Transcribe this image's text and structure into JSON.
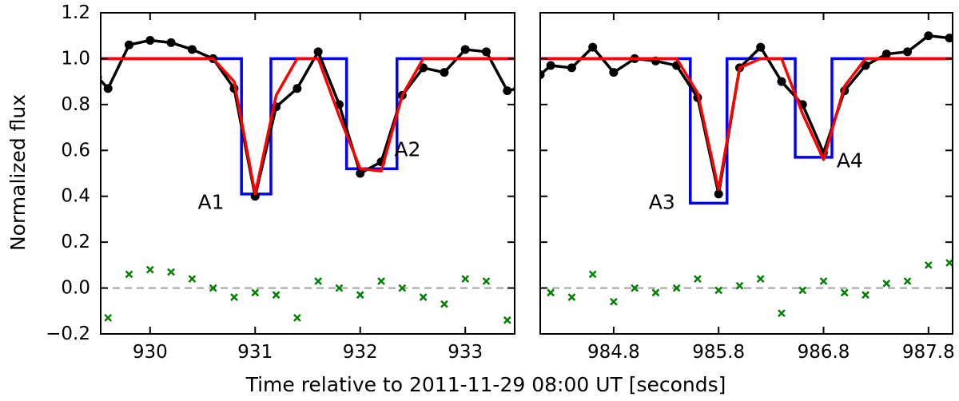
{
  "chart_data": {
    "type": "line",
    "xlabel": "Time relative to 2011-11-29 08:00 UT [seconds]",
    "ylabel": "Normalized flux",
    "ylim": [
      -0.2,
      1.2
    ],
    "yticks": [
      -0.2,
      0.0,
      0.2,
      0.4,
      0.6,
      0.8,
      1.0,
      1.2
    ],
    "ytick_labels": [
      "−0.2",
      "0.0",
      "0.2",
      "0.4",
      "0.6",
      "0.8",
      "1.0",
      "1.2"
    ],
    "grid": false,
    "colors": {
      "observed": "#000000",
      "square_model": "#0000ff",
      "smoothed_model": "#ff0000",
      "residuals": "#008000",
      "zero_line": "#a0a0a0"
    },
    "panels": [
      {
        "xlim": [
          929.53,
          933.47
        ],
        "xticks": [
          930,
          931,
          932,
          933
        ],
        "xtick_labels": [
          "930",
          "931",
          "932",
          "933"
        ],
        "annotations": [
          {
            "text": "A1",
            "x": 930.58,
            "y": 0.37
          },
          {
            "text": "A2",
            "x": 932.45,
            "y": 0.6
          }
        ],
        "observed": {
          "x": [
            929.5,
            929.6,
            929.8,
            930.0,
            930.2,
            930.4,
            930.6,
            930.8,
            931.0,
            931.2,
            931.4,
            931.6,
            931.8,
            932.0,
            932.2,
            932.4,
            932.6,
            932.8,
            933.0,
            933.2,
            933.4,
            933.5
          ],
          "y": [
            0.92,
            0.87,
            1.06,
            1.08,
            1.07,
            1.04,
            1.0,
            0.87,
            0.4,
            0.79,
            0.87,
            1.03,
            0.8,
            0.5,
            0.55,
            0.84,
            0.96,
            0.94,
            1.04,
            1.03,
            0.86,
            0.87
          ]
        },
        "square_model": {
          "x": [
            929.53,
            930.87,
            930.87,
            931.15,
            931.15,
            931.87,
            931.87,
            932.35,
            932.35,
            933.47
          ],
          "y": [
            1.0,
            1.0,
            0.41,
            0.41,
            1.0,
            1.0,
            0.52,
            0.52,
            1.0,
            1.0
          ]
        },
        "smoothed_model": {
          "x": [
            929.53,
            930.6,
            930.8,
            931.0,
            931.2,
            931.4,
            931.6,
            931.8,
            932.0,
            932.2,
            932.4,
            932.6,
            933.47
          ],
          "y": [
            1.0,
            1.0,
            0.9,
            0.41,
            0.84,
            1.0,
            1.0,
            0.75,
            0.52,
            0.51,
            0.84,
            1.0,
            1.0
          ]
        },
        "residuals": {
          "x": [
            929.6,
            929.8,
            930.0,
            930.2,
            930.4,
            930.6,
            930.8,
            931.0,
            931.2,
            931.4,
            931.6,
            931.8,
            932.0,
            932.2,
            932.4,
            932.6,
            932.8,
            933.0,
            933.2,
            933.4
          ],
          "y": [
            -0.13,
            0.06,
            0.08,
            0.07,
            0.04,
            0.0,
            -0.04,
            -0.02,
            -0.03,
            -0.13,
            0.03,
            0.0,
            -0.03,
            0.03,
            0.0,
            -0.04,
            -0.07,
            0.04,
            0.03,
            -0.14
          ]
        }
      },
      {
        "xlim": [
          984.1,
          988.03
        ],
        "xticks": [
          984.8,
          985.8,
          986.8,
          987.8
        ],
        "xtick_labels": [
          "984.8",
          "985.8",
          "986.8",
          "987.8"
        ],
        "annotations": [
          {
            "text": "A3",
            "x": 985.26,
            "y": 0.37
          },
          {
            "text": "A4",
            "x": 987.05,
            "y": 0.55
          }
        ],
        "observed": {
          "x": [
            984.1,
            984.2,
            984.4,
            984.6,
            984.8,
            985.0,
            985.2,
            985.4,
            985.6,
            985.8,
            986.0,
            986.2,
            986.4,
            986.6,
            986.8,
            987.0,
            987.2,
            987.4,
            987.6,
            987.8,
            988.0,
            988.1
          ],
          "y": [
            0.93,
            0.97,
            0.96,
            1.05,
            0.94,
            1.0,
            0.99,
            0.97,
            0.83,
            0.41,
            0.96,
            1.05,
            0.9,
            0.8,
            0.59,
            0.86,
            0.97,
            1.02,
            1.03,
            1.1,
            1.09,
            1.12
          ]
        },
        "square_model": {
          "x": [
            984.1,
            985.53,
            985.53,
            985.88,
            985.88,
            986.53,
            986.53,
            986.88,
            986.88,
            988.03
          ],
          "y": [
            1.0,
            1.0,
            0.37,
            0.37,
            1.0,
            1.0,
            0.57,
            0.57,
            1.0,
            1.0
          ]
        },
        "smoothed_model": {
          "x": [
            984.1,
            985.4,
            985.6,
            985.8,
            986.0,
            986.2,
            986.4,
            986.6,
            986.8,
            987.0,
            987.2,
            988.03
          ],
          "y": [
            1.0,
            1.0,
            0.85,
            0.43,
            0.96,
            1.0,
            1.0,
            0.76,
            0.56,
            0.88,
            1.0,
            1.0
          ]
        },
        "residuals": {
          "x": [
            984.2,
            984.4,
            984.6,
            984.8,
            985.0,
            985.2,
            985.4,
            985.6,
            985.8,
            986.0,
            986.2,
            986.4,
            986.6,
            986.8,
            987.0,
            987.2,
            987.4,
            987.6,
            987.8,
            988.0
          ],
          "y": [
            -0.02,
            -0.04,
            0.06,
            -0.06,
            0.0,
            -0.02,
            0.0,
            0.04,
            -0.01,
            0.01,
            0.04,
            -0.11,
            -0.01,
            0.03,
            -0.02,
            -0.03,
            0.02,
            0.03,
            0.1,
            0.11
          ]
        }
      }
    ]
  }
}
